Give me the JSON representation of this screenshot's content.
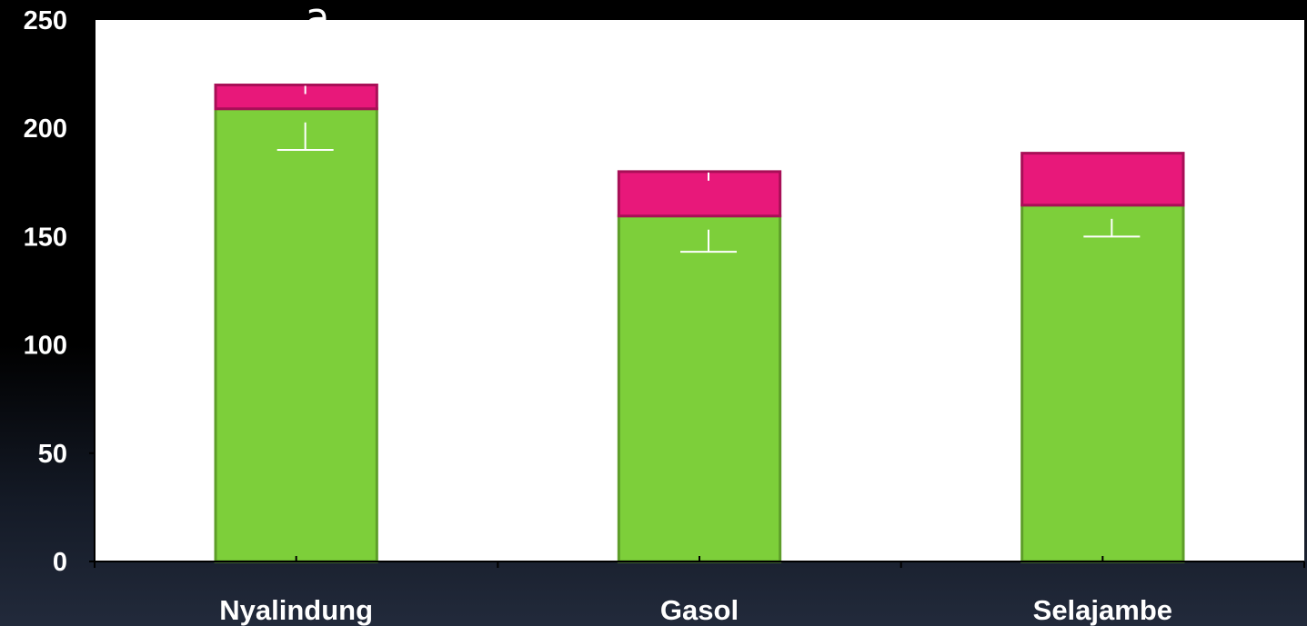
{
  "chart_data": {
    "type": "bar",
    "stacked": true,
    "categories": [
      "Nyalindung",
      "Gasol",
      "Selajambe"
    ],
    "series": [
      {
        "values": [
          209,
          159.5,
          164.5
        ],
        "color": "#7dcf3a",
        "error_down": [
          19,
          16.5,
          14.5
        ]
      },
      {
        "values": [
          11,
          20.5,
          24
        ],
        "color": "#e8187a",
        "error_up": [
          3,
          3,
          0
        ]
      }
    ],
    "ylim": [
      0,
      250
    ],
    "yticks": [
      "0",
      "50",
      "100",
      "150",
      "200",
      "250"
    ],
    "annotation": "a",
    "grid": false,
    "plot_background": "#ffffff",
    "error_bar_color": "#ffffff"
  }
}
